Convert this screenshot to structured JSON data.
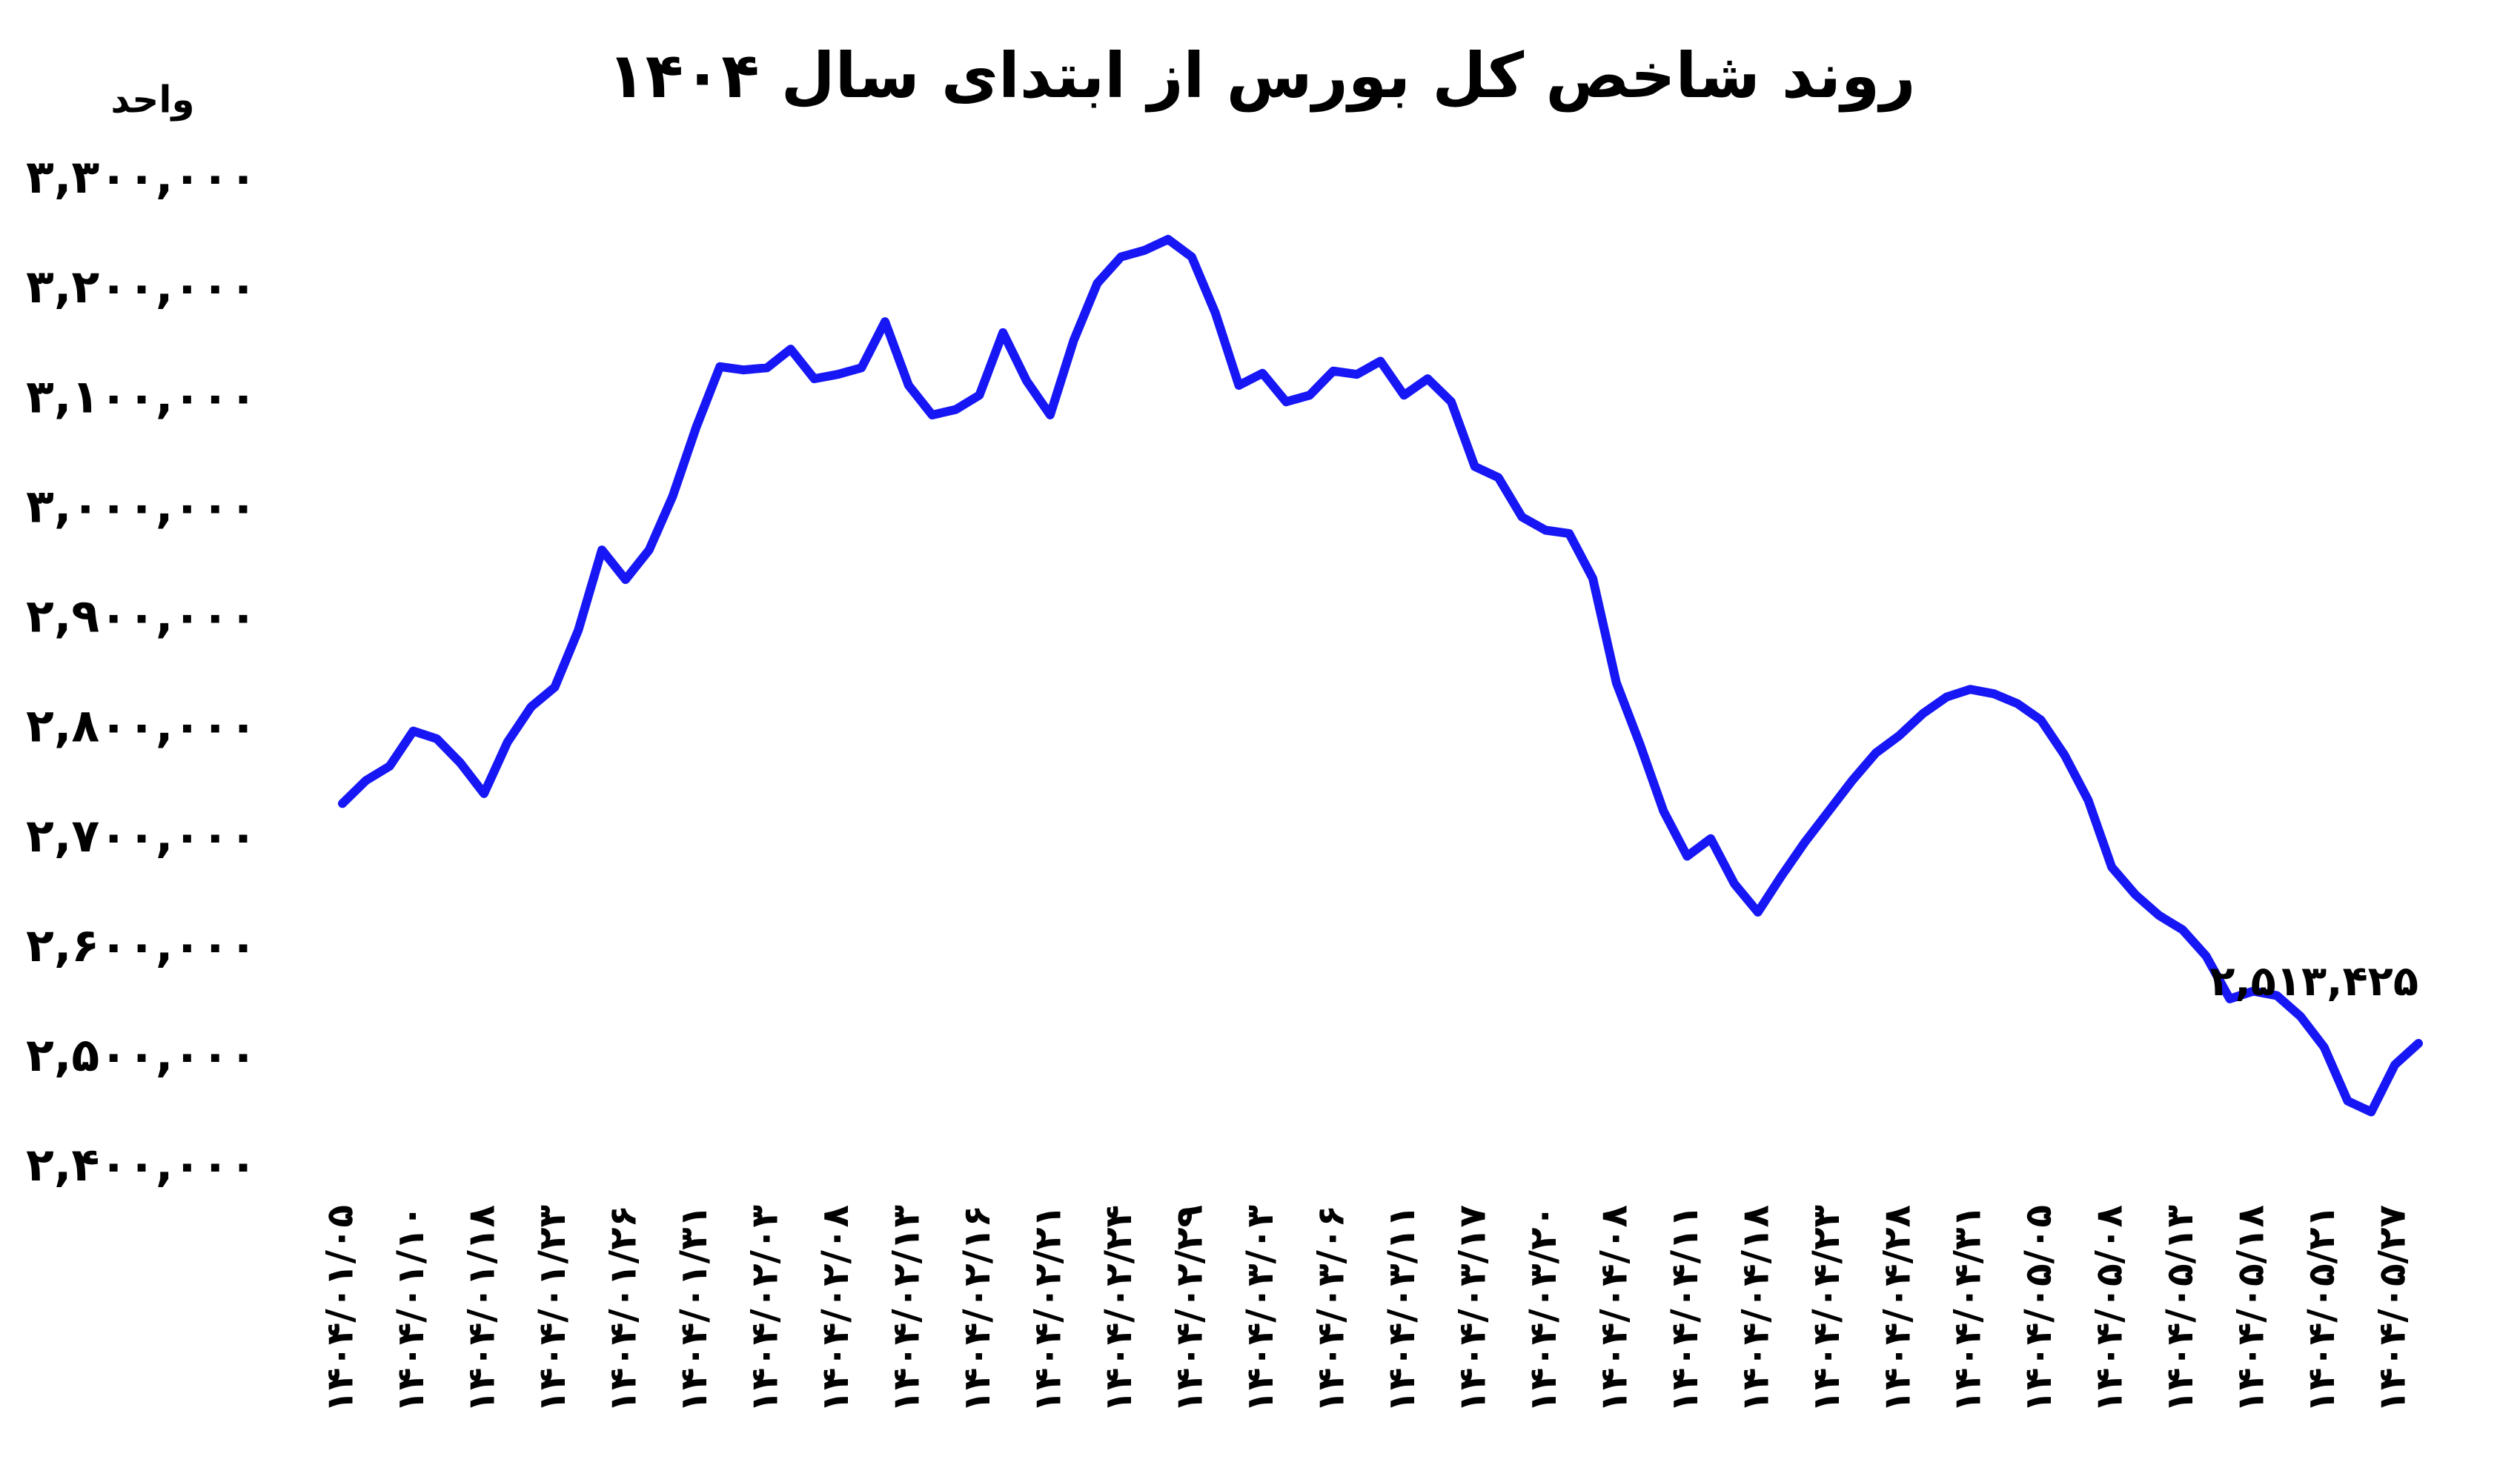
{
  "chart_data": {
    "type": "line",
    "title": "روند شاخص کل بورس از ابتدای سال ۱۴۰۴",
    "y_label": "واحد",
    "categories": [
      "۱۴۰۴/۰۱/۰۵",
      null,
      null,
      "۱۴۰۴/۰۱/۱۰",
      null,
      null,
      "۱۴۰۴/۰۱/۱۸",
      null,
      null,
      "۱۴۰۴/۰۱/۲۳",
      null,
      null,
      "۱۴۰۴/۰۱/۲۶",
      null,
      null,
      "۱۴۰۴/۰۱/۳۱",
      null,
      null,
      "۱۴۰۴/۰۲/۰۳",
      null,
      null,
      "۱۴۰۴/۰۲/۰۸",
      null,
      null,
      "۱۴۰۴/۰۲/۱۳",
      null,
      null,
      "۱۴۰۴/۰۲/۱۶",
      null,
      null,
      "۱۴۰۴/۰۲/۲۱",
      null,
      null,
      "۱۴۰۴/۰۲/۲۴",
      null,
      null,
      "۱۴۰۴/۰۲/۲۹",
      null,
      null,
      "۱۴۰۴/۰۳/۰۳",
      null,
      null,
      "۱۴۰۴/۰۳/۰۶",
      null,
      null,
      "۱۴۰۴/۰۳/۱۱",
      null,
      null,
      "۱۴۰۴/۰۳/۱۷",
      null,
      null,
      "۱۴۰۴/۰۳/۲۰",
      null,
      null,
      "۱۴۰۴/۰۴/۰۸",
      null,
      null,
      "۱۴۰۴/۰۴/۱۱",
      null,
      null,
      "۱۴۰۴/۰۴/۱۸",
      null,
      null,
      "۱۴۰۴/۰۴/۲۳",
      null,
      null,
      "۱۴۰۴/۰۴/۲۸",
      null,
      null,
      "۱۴۰۴/۰۴/۳۱",
      null,
      null,
      "۱۴۰۴/۰۵/۰۵",
      null,
      null,
      "۱۴۰۴/۰۵/۰۸",
      null,
      null,
      "۱۴۰۴/۰۵/۱۳",
      null,
      null,
      "۱۴۰۴/۰۵/۱۸",
      null,
      null,
      "۱۴۰۴/۰۵/۲۱",
      null,
      null,
      "۱۴۰۴/۰۵/۲۷",
      null
    ],
    "values": [
      2732000,
      2753000,
      2766000,
      2798000,
      2791000,
      2769000,
      2741000,
      2788000,
      2820000,
      2838000,
      2890000,
      2963000,
      2936000,
      2963000,
      3012000,
      3075000,
      3130000,
      3127000,
      3129000,
      3146000,
      3119000,
      3123000,
      3129000,
      3171000,
      3113000,
      3086000,
      3091000,
      3104000,
      3161000,
      3117000,
      3086000,
      3154000,
      3206000,
      3230000,
      3236000,
      3246000,
      3230000,
      3179000,
      3113000,
      3124000,
      3098000,
      3104000,
      3126000,
      3123000,
      3135000,
      3104000,
      3119000,
      3098000,
      3039000,
      3029000,
      2993000,
      2981000,
      2978000,
      2937000,
      2842000,
      2786000,
      2725000,
      2684000,
      2700000,
      2659000,
      2633000,
      2666000,
      2697000,
      2725000,
      2753000,
      2778000,
      2794000,
      2814000,
      2829000,
      2836000,
      2832000,
      2823000,
      2808000,
      2776000,
      2735000,
      2674000,
      2649000,
      2630000,
      2617000,
      2593000,
      2554000,
      2561000,
      2557000,
      2538000,
      2510000,
      2461000,
      2451000,
      2494000,
      2513425
    ],
    "value_labels": [
      null,
      null,
      null,
      null,
      null,
      null,
      null,
      null,
      null,
      null,
      null,
      null,
      null,
      null,
      null,
      null,
      null,
      null,
      null,
      null,
      null,
      null,
      null,
      null,
      null,
      null,
      null,
      null,
      null,
      null,
      null,
      null,
      null,
      null,
      null,
      null,
      null,
      null,
      null,
      null,
      null,
      null,
      null,
      null,
      null,
      null,
      null,
      null,
      null,
      null,
      null,
      null,
      null,
      null,
      null,
      null,
      null,
      null,
      null,
      null,
      null,
      null,
      null,
      null,
      null,
      null,
      null,
      null,
      null,
      null,
      null,
      null,
      null,
      null,
      null,
      null,
      null,
      null,
      null,
      null,
      null,
      null,
      null,
      null,
      null,
      null,
      null,
      null,
      "۲,۵۱۳,۴۲۵"
    ],
    "color": "#1717f5",
    "ylim": [
      2400000,
      3300000
    ],
    "yticks": [
      {
        "value": 2400000,
        "label": "۲,۴۰۰,۰۰۰"
      },
      {
        "value": 2500000,
        "label": "۲,۵۰۰,۰۰۰"
      },
      {
        "value": 2600000,
        "label": "۲,۶۰۰,۰۰۰"
      },
      {
        "value": 2700000,
        "label": "۲,۷۰۰,۰۰۰"
      },
      {
        "value": 2800000,
        "label": "۲,۸۰۰,۰۰۰"
      },
      {
        "value": 2900000,
        "label": "۲,۹۰۰,۰۰۰"
      },
      {
        "value": 3000000,
        "label": "۳,۰۰۰,۰۰۰"
      },
      {
        "value": 3100000,
        "label": "۳,۱۰۰,۰۰۰"
      },
      {
        "value": 3200000,
        "label": "۳,۲۰۰,۰۰۰"
      },
      {
        "value": 3300000,
        "label": "۳,۳۰۰,۰۰۰"
      }
    ],
    "grid": false
  }
}
